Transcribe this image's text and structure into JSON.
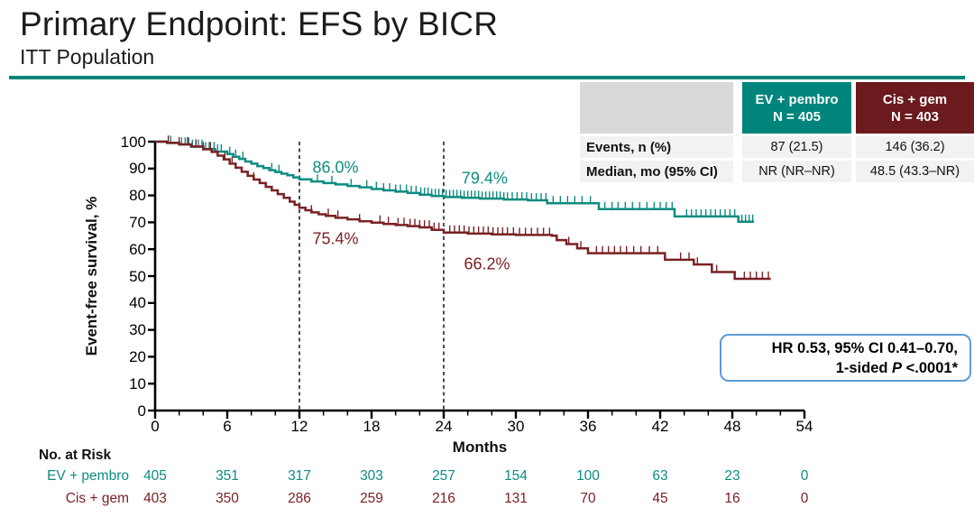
{
  "slide": {
    "title": "Primary Endpoint: EFS by BICR",
    "subtitle": "ITT Population",
    "accent_color": "#00857c"
  },
  "colors": {
    "teal": "#0e8c81",
    "maroon": "#7a2124",
    "teal_header": "#00857c",
    "maroon_header": "#6b1a1d",
    "table_corner": "#d9d9d9",
    "table_row": "#f2f2f2",
    "hr_border": "#5b9bd5",
    "dashed_line": "#3a3a3a"
  },
  "summary_table": {
    "col_headers": [
      {
        "label": "EV + pembro",
        "n": "N = 405",
        "color": "#00857c"
      },
      {
        "label": "Cis + gem",
        "n": "N = 403",
        "color": "#6b1a1d"
      }
    ],
    "rows": [
      {
        "label": "Events, n (%)",
        "values": [
          "87 (21.5)",
          "146 (36.2)"
        ]
      },
      {
        "label": "Median, mo (95% CI)",
        "values": [
          "NR (NR–NR)",
          "48.5 (43.3–NR)"
        ]
      }
    ]
  },
  "hr_box": {
    "line1": "HR 0.53, 95% CI 0.41–0.70,",
    "line2_prefix": "1-sided ",
    "line2_italic": "P",
    "line2_suffix": " <.0001*"
  },
  "chart_data": {
    "type": "line",
    "subtype": "kaplan-meier-step",
    "title": "",
    "xlabel": "Months",
    "ylabel": "Event-free survival, %",
    "xlim": [
      0,
      54
    ],
    "ylim": [
      0,
      100
    ],
    "xticks": [
      0,
      6,
      12,
      18,
      24,
      30,
      36,
      42,
      48,
      54
    ],
    "minor_xtick_interval": 2,
    "yticks": [
      0,
      10,
      20,
      30,
      40,
      50,
      60,
      70,
      80,
      90,
      100
    ],
    "grid": false,
    "reference_lines_months": [
      12,
      24
    ],
    "legend_position": "none",
    "series": [
      {
        "name": "EV + pembro",
        "color": "#7a2124_placeholder_overridden_below",
        "steps": []
      }
    ]
  },
  "km": {
    "series": [
      {
        "name": "EV + pembro",
        "color": "#0e8c81",
        "landmarks": [
          {
            "label": "86.0%",
            "month": 12,
            "pct": 86.0,
            "label_month": 15.0,
            "label_pct": 90.3
          },
          {
            "label": "79.4%",
            "month": 24,
            "pct": 79.4,
            "label_month": 27.4,
            "label_pct": 86.2
          }
        ],
        "steps": [
          [
            0,
            100
          ],
          [
            1,
            99.5
          ],
          [
            2,
            98.9
          ],
          [
            3,
            98.1
          ],
          [
            4,
            97.2
          ],
          [
            5,
            96.3
          ],
          [
            6,
            95.4
          ],
          [
            6.5,
            94.4
          ],
          [
            7,
            93.6
          ],
          [
            7.5,
            92.6
          ],
          [
            8,
            91.8
          ],
          [
            8.5,
            90.9
          ],
          [
            9,
            90.2
          ],
          [
            9.5,
            89.4
          ],
          [
            10,
            88.7
          ],
          [
            10.5,
            88.1
          ],
          [
            11,
            87.5
          ],
          [
            11.5,
            86.7
          ],
          [
            12,
            86.0
          ],
          [
            13,
            85.2
          ],
          [
            14,
            84.6
          ],
          [
            15,
            84.1
          ],
          [
            16,
            83.5
          ],
          [
            17,
            83.0
          ],
          [
            18,
            82.4
          ],
          [
            19,
            81.9
          ],
          [
            20,
            81.4
          ],
          [
            21,
            80.9
          ],
          [
            22,
            80.3
          ],
          [
            23,
            79.8
          ],
          [
            24,
            79.4
          ],
          [
            25.5,
            79.1
          ],
          [
            27,
            78.8
          ],
          [
            29,
            78.5
          ],
          [
            31,
            78.2
          ],
          [
            32.6,
            77.1
          ],
          [
            36.9,
            74.9
          ],
          [
            43.2,
            72.2
          ],
          [
            48.5,
            70.2
          ],
          [
            49.8,
            70.2
          ]
        ],
        "censor_months": [
          1.3,
          2.2,
          2.5,
          2.8,
          3.1,
          3.4,
          3.6,
          3.9,
          4.2,
          4.5,
          4.9,
          5.2,
          5.5,
          6.2,
          6.7,
          7.3,
          9.7,
          10.3,
          13.5,
          14.7,
          16.3,
          17.6,
          18.4,
          19.0,
          19.5,
          20.0,
          20.4,
          20.9,
          21.3,
          21.7,
          22.1,
          22.4,
          22.7,
          23.0,
          23.3,
          23.6,
          23.9,
          24.2,
          24.5,
          24.8,
          25.1,
          25.4,
          25.7,
          26.0,
          26.3,
          26.6,
          26.9,
          27.2,
          27.5,
          27.8,
          28.1,
          28.4,
          28.7,
          29.0,
          29.3,
          29.7,
          30.1,
          30.5,
          30.9,
          31.3,
          31.7,
          32.1,
          32.5,
          33.1,
          33.7,
          34.3,
          34.9,
          35.5,
          36.2,
          37.4,
          38.0,
          38.5,
          39.1,
          39.7,
          40.3,
          40.9,
          41.5,
          42.0,
          42.5,
          43.0,
          44.2,
          44.6,
          45.0,
          45.4,
          45.8,
          46.2,
          46.6,
          47.0,
          47.4,
          47.8,
          48.2,
          48.8,
          49.1,
          49.4,
          49.7
        ]
      },
      {
        "name": "Cis + gem",
        "color": "#7a2124",
        "landmarks": [
          {
            "label": "75.4%",
            "month": 12,
            "pct": 75.4,
            "label_month": 15.0,
            "label_pct": 63.8
          },
          {
            "label": "66.2%",
            "month": 24,
            "pct": 66.2,
            "label_month": 27.6,
            "label_pct": 54.4
          }
        ],
        "steps": [
          [
            0,
            100
          ],
          [
            1,
            99.6
          ],
          [
            2,
            99.0
          ],
          [
            3,
            98.2
          ],
          [
            4,
            97.2
          ],
          [
            4.7,
            96.2
          ],
          [
            5.2,
            94.8
          ],
          [
            5.7,
            93.4
          ],
          [
            6.2,
            91.8
          ],
          [
            6.7,
            90.3
          ],
          [
            7.2,
            88.8
          ],
          [
            7.7,
            87.3
          ],
          [
            8.2,
            85.9
          ],
          [
            8.7,
            84.6
          ],
          [
            9.2,
            83.2
          ],
          [
            9.7,
            81.9
          ],
          [
            10.2,
            80.5
          ],
          [
            10.7,
            79.1
          ],
          [
            11.2,
            77.7
          ],
          [
            11.6,
            76.5
          ],
          [
            12,
            75.4
          ],
          [
            12.5,
            74.5
          ],
          [
            13,
            73.7
          ],
          [
            13.6,
            73.0
          ],
          [
            14.2,
            72.4
          ],
          [
            15,
            71.7
          ],
          [
            16,
            71.1
          ],
          [
            17,
            70.4
          ],
          [
            18,
            69.9
          ],
          [
            19,
            69.4
          ],
          [
            20,
            69.0
          ],
          [
            21,
            68.6
          ],
          [
            22,
            68.1
          ],
          [
            23,
            67.2
          ],
          [
            24,
            66.2
          ],
          [
            26,
            65.8
          ],
          [
            28,
            65.5
          ],
          [
            30,
            65.3
          ],
          [
            33,
            65.0
          ],
          [
            33.4,
            63.4
          ],
          [
            34.2,
            61.9
          ],
          [
            35.1,
            60.3
          ],
          [
            36,
            58.5
          ],
          [
            42.4,
            56.1
          ],
          [
            44.8,
            54.3
          ],
          [
            46.3,
            51.5
          ],
          [
            48.2,
            49.0
          ],
          [
            51.2,
            49.0
          ]
        ],
        "censor_months": [
          1.1,
          2.0,
          2.7,
          3.4,
          4.0,
          4.6,
          5.8,
          6.4,
          8.2,
          13.0,
          14.4,
          15.2,
          17.0,
          18.7,
          19.4,
          20.2,
          20.7,
          21.2,
          21.6,
          22.0,
          22.4,
          22.8,
          23.2,
          23.6,
          24.5,
          24.9,
          25.3,
          25.7,
          26.1,
          26.5,
          26.9,
          27.3,
          27.7,
          28.1,
          28.5,
          28.9,
          29.3,
          29.8,
          30.3,
          30.8,
          31.3,
          31.8,
          32.3,
          32.8,
          34.4,
          35.4,
          36.7,
          37.2,
          37.7,
          38.2,
          38.7,
          39.2,
          39.8,
          40.4,
          41.1,
          41.8,
          43.7,
          44.4,
          45.1,
          46.7,
          49.0,
          49.5,
          50.0,
          50.5,
          51.0
        ]
      }
    ]
  },
  "risk_table": {
    "title": "No. at Risk",
    "rows": [
      {
        "label": "EV + pembro",
        "color": "#0e8c81",
        "values": [
          405,
          351,
          317,
          303,
          257,
          154,
          100,
          63,
          23,
          0
        ]
      },
      {
        "label": "Cis + gem",
        "color": "#7a2124",
        "values": [
          403,
          350,
          286,
          259,
          216,
          131,
          70,
          45,
          16,
          0
        ]
      }
    ]
  }
}
